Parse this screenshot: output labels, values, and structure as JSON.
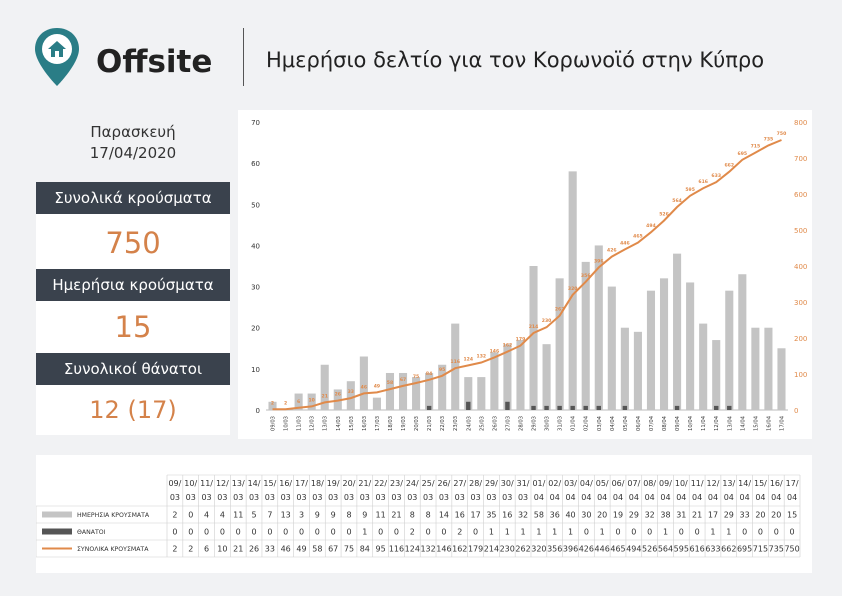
{
  "header": {
    "logo_text": "Offsite",
    "title": "Ημερήσιο δελτίο για τον Κορωνοϊό στην Κύπρο"
  },
  "left": {
    "day": "Παρασκευή",
    "date": "17/04/2020",
    "total_cases_label": "Συνολικά κρούσματα",
    "total_cases_value": "750",
    "daily_cases_label": "Ημερήσια κρούσματα",
    "daily_cases_value": "15",
    "deaths_label": "Συνολικοί θάνατοι",
    "deaths_value": "12 (17)"
  },
  "colors": {
    "bars": "#c4c4c4",
    "deaths": "#555555",
    "line": "#e08a4a",
    "accent": "#d4824a",
    "dark": "#3a424d",
    "logo": "#2a7d86"
  },
  "chart_data": {
    "type": "bar",
    "categories": [
      "09/03",
      "10/03",
      "11/03",
      "12/03",
      "13/03",
      "14/03",
      "15/03",
      "16/03",
      "17/03",
      "18/03",
      "19/03",
      "20/03",
      "21/03",
      "22/03",
      "23/03",
      "24/03",
      "25/03",
      "26/03",
      "27/03",
      "28/03",
      "29/03",
      "30/03",
      "31/03",
      "01/04",
      "02/04",
      "03/04",
      "04/04",
      "05/04",
      "06/04",
      "07/04",
      "08/04",
      "09/04",
      "10/04",
      "11/04",
      "12/04",
      "13/04",
      "14/04",
      "15/04",
      "16/04",
      "17/04"
    ],
    "series": [
      {
        "name": "ΗΜΕΡΗΣΙΑ ΚΡΟΥΣΜΑΤΑ",
        "type": "bar",
        "axis": "left",
        "values": [
          2,
          0,
          4,
          4,
          11,
          5,
          7,
          13,
          3,
          9,
          9,
          8,
          9,
          11,
          21,
          8,
          8,
          14,
          16,
          17,
          35,
          16,
          32,
          58,
          36,
          40,
          30,
          20,
          19,
          29,
          32,
          38,
          31,
          21,
          17,
          29,
          33,
          20,
          20,
          15
        ]
      },
      {
        "name": "ΘΑΝΑΤΟΙ",
        "type": "bar",
        "axis": "left",
        "values": [
          0,
          0,
          0,
          0,
          0,
          0,
          0,
          0,
          0,
          0,
          0,
          0,
          1,
          0,
          0,
          2,
          0,
          0,
          2,
          0,
          1,
          1,
          1,
          1,
          1,
          1,
          0,
          1,
          0,
          0,
          0,
          1,
          0,
          0,
          1,
          1,
          0,
          0,
          0,
          0
        ]
      },
      {
        "name": "ΣΥΝΟΛΙΚΑ ΚΡΟΥΣΜΑΤΑ",
        "type": "line",
        "axis": "right",
        "values": [
          2,
          2,
          6,
          10,
          21,
          26,
          33,
          46,
          49,
          58,
          67,
          75,
          84,
          95,
          116,
          124,
          132,
          146,
          162,
          179,
          214,
          230,
          262,
          320,
          356,
          396,
          426,
          446,
          465,
          494,
          526,
          564,
          595,
          616,
          633,
          662,
          695,
          715,
          735,
          750
        ]
      }
    ],
    "y_left": {
      "min": 0,
      "max": 70,
      "ticks": [
        0,
        10,
        20,
        30,
        40,
        50,
        60,
        70
      ]
    },
    "y_right": {
      "min": 0,
      "max": 800,
      "ticks": [
        0,
        100,
        200,
        300,
        400,
        500,
        600,
        700,
        800
      ]
    },
    "legend": "table-below"
  }
}
